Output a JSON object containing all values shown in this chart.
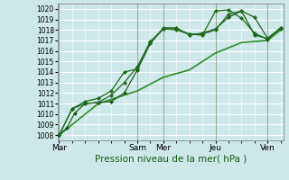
{
  "xlabel": "Pression niveau de la mer( hPa )",
  "bg_color": "#cce8e8",
  "grid_color": "#ffffff",
  "line_color_dark": "#1a5c1a",
  "ylim": [
    1007.5,
    1020.5
  ],
  "yticks": [
    1008,
    1009,
    1010,
    1011,
    1012,
    1013,
    1014,
    1015,
    1016,
    1017,
    1018,
    1019,
    1020
  ],
  "day_labels": [
    "Mar",
    "Sam",
    "Mer",
    "Jeu",
    "Ven"
  ],
  "day_positions": [
    0,
    3.0,
    4.0,
    6.0,
    8.0
  ],
  "xlim": [
    -0.05,
    8.6
  ],
  "lines": [
    {
      "x": [
        0,
        0.3,
        0.6,
        1.0,
        1.5,
        2.0,
        2.5,
        3.0,
        3.5,
        4.0,
        4.5,
        5.0,
        5.5,
        6.0,
        6.5,
        7.0,
        7.5,
        8.0,
        8.5
      ],
      "y": [
        1008.0,
        1008.7,
        1010.1,
        1011.0,
        1011.1,
        1011.2,
        1012.0,
        1014.2,
        1016.7,
        1018.2,
        1018.2,
        1017.5,
        1017.7,
        1018.1,
        1019.2,
        1019.8,
        1017.5,
        1017.2,
        1018.2
      ],
      "marker": "D",
      "ms": 2.2,
      "lw": 0.9,
      "color": "#1a5c1a"
    },
    {
      "x": [
        0,
        0.5,
        1.0,
        1.5,
        2.0,
        2.5,
        3.0,
        3.5,
        4.0,
        4.5,
        5.0,
        5.5,
        6.0,
        6.5,
        7.0,
        7.5,
        8.0,
        8.5
      ],
      "y": [
        1008.0,
        1010.5,
        1011.0,
        1011.1,
        1011.8,
        1013.0,
        1014.5,
        1016.9,
        1018.1,
        1018.0,
        1017.6,
        1017.6,
        1018.0,
        1019.5,
        1019.8,
        1019.2,
        1017.2,
        1018.1
      ],
      "marker": "D",
      "ms": 2.2,
      "lw": 0.9,
      "color": "#256625"
    },
    {
      "x": [
        0,
        0.5,
        1.0,
        1.5,
        2.0,
        2.5,
        3.0,
        3.5,
        4.0,
        4.5,
        5.0,
        5.5,
        6.0,
        6.5,
        7.0,
        7.5,
        8.0,
        8.5
      ],
      "y": [
        1008.0,
        1010.5,
        1011.2,
        1011.5,
        1012.2,
        1014.0,
        1014.3,
        1016.8,
        1018.1,
        1018.1,
        1017.6,
        1017.5,
        1019.8,
        1019.9,
        1019.1,
        1017.7,
        1017.1,
        1018.2
      ],
      "marker": "D",
      "ms": 2.2,
      "lw": 0.9,
      "color": "#1a6b1a"
    },
    {
      "x": [
        0,
        1.5,
        3.0,
        4.0,
        5.0,
        6.0,
        7.0,
        8.0,
        8.5
      ],
      "y": [
        1008.0,
        1011.0,
        1012.2,
        1013.5,
        1014.2,
        1015.8,
        1016.8,
        1017.0,
        1018.0
      ],
      "marker": null,
      "ms": 0,
      "lw": 1.2,
      "color": "#2d8b2d"
    }
  ],
  "xlabel_color": "#1a5c1a",
  "xlabel_fontsize": 7.5,
  "ytick_fontsize": 5.5,
  "xtick_fontsize": 6.5,
  "vline_color": "#6b8b6b",
  "vline_lw": 0.8
}
